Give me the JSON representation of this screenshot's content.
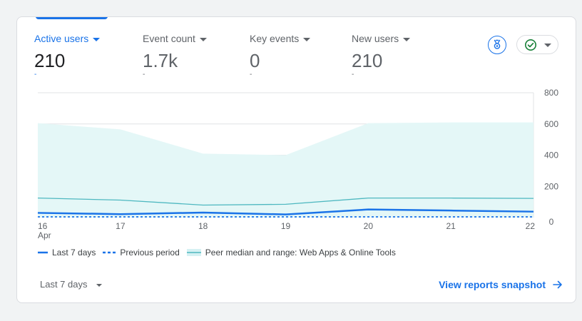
{
  "metrics": [
    {
      "label": "Active users",
      "value": "210",
      "change": "-",
      "active": true
    },
    {
      "label": "Event count",
      "value": "1.7k",
      "change": "-",
      "active": false
    },
    {
      "label": "Key events",
      "value": "0",
      "change": "-",
      "active": false
    },
    {
      "label": "New users",
      "value": "210",
      "change": "-",
      "active": false
    }
  ],
  "legend": {
    "last_7_days": "Last 7 days",
    "previous_period": "Previous period",
    "peer": "Peer median and range: Web Apps & Online Tools"
  },
  "footer": {
    "date_range": "Last 7 days",
    "link": "View reports snapshot"
  },
  "icons": {
    "insight": "benchmark-ribbon-icon",
    "status": "check-circle-icon",
    "link_arrow": "arrow-right-icon"
  },
  "colors": {
    "primary": "#1a73e8",
    "peer_band": "#e4f7f7",
    "peer_line": "#4eb8c0",
    "status_check": "#188038"
  },
  "chart_data": {
    "type": "line",
    "x": [
      "16",
      "17",
      "18",
      "19",
      "20",
      "21",
      "22"
    ],
    "x_sublabel": "Apr",
    "y_ticks": [
      0,
      200,
      400,
      600,
      800
    ],
    "ylim": [
      0,
      800
    ],
    "series": [
      {
        "name": "Last 7 days",
        "style": "solid",
        "values": [
          30,
          22,
          32,
          20,
          52,
          45,
          38
        ]
      },
      {
        "name": "Previous period",
        "style": "dashed",
        "values": [
          0,
          0,
          0,
          0,
          0,
          0,
          0
        ]
      },
      {
        "name": "Peer median and range: Web Apps & Online Tools",
        "style": "median",
        "values": [
          125,
          112,
          80,
          85,
          125,
          125,
          123
        ]
      }
    ],
    "peer_range": {
      "upper": [
        605,
        565,
        410,
        400,
        605,
        610,
        610
      ],
      "lower": [
        0,
        0,
        0,
        0,
        0,
        0,
        0
      ]
    }
  }
}
